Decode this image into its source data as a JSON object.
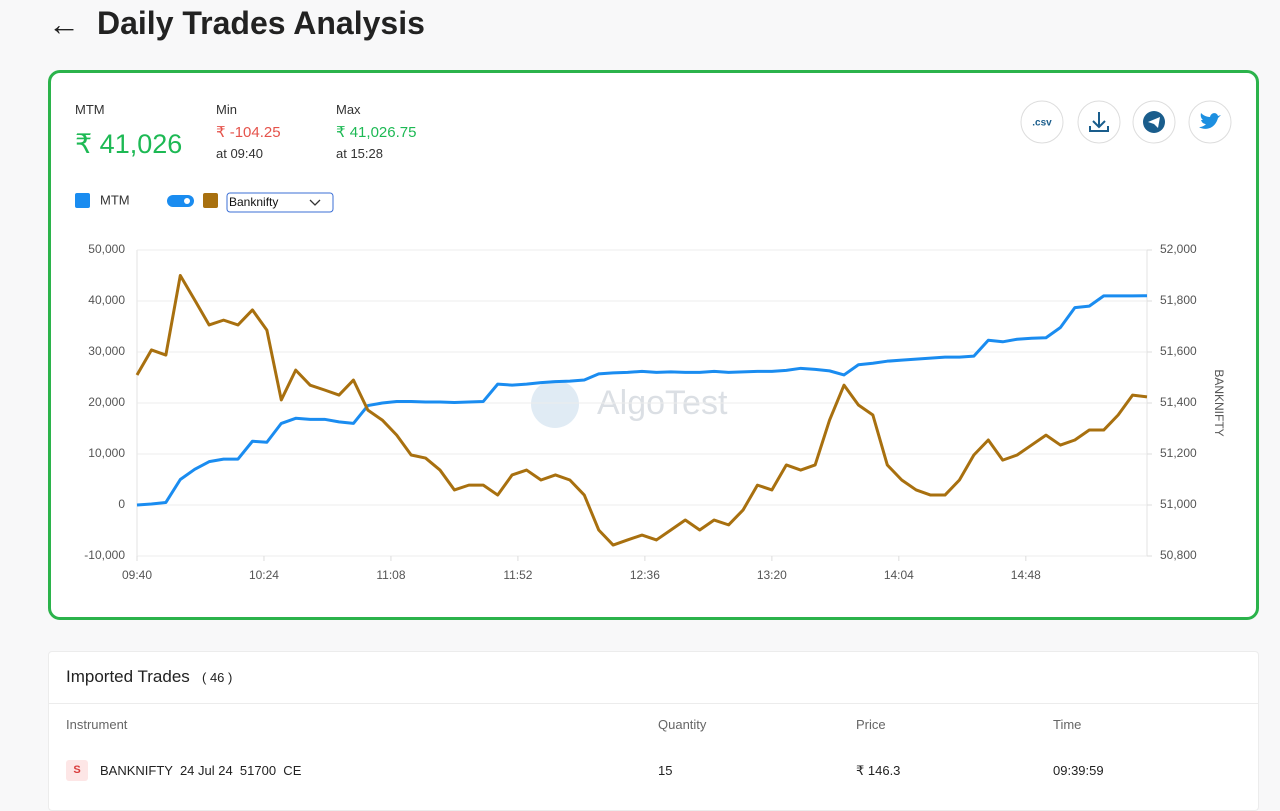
{
  "header": {
    "title": "Daily Trades Analysis"
  },
  "stats": [
    {
      "label": "MTM",
      "value": "₹ 41,026"
    },
    {
      "label": "Min",
      "value": "₹ -104.25",
      "time": "at 09:40"
    },
    {
      "label": "Max",
      "value": "₹ 41,026.75",
      "time": "at 15:28"
    }
  ],
  "actions": {
    "csv": ".csv"
  },
  "chart_data": {
    "type": "line",
    "watermark": "AlgoTest",
    "x": [
      "09:40",
      "09:45",
      "09:50",
      "09:55",
      "10:00",
      "10:05",
      "10:10",
      "10:15",
      "10:20",
      "10:25",
      "10:30",
      "10:35",
      "10:40",
      "10:45",
      "10:50",
      "10:55",
      "11:00",
      "11:05",
      "11:10",
      "11:15",
      "11:20",
      "11:25",
      "11:30",
      "11:35",
      "11:40",
      "11:45",
      "11:50",
      "11:55",
      "12:00",
      "12:05",
      "12:10",
      "12:15",
      "12:20",
      "12:25",
      "12:30",
      "12:35",
      "12:40",
      "12:45",
      "12:50",
      "12:55",
      "13:00",
      "13:05",
      "13:10",
      "13:15",
      "13:20",
      "13:25",
      "13:30",
      "13:35",
      "13:40",
      "13:45",
      "13:50",
      "13:55",
      "14:00",
      "14:05",
      "14:10",
      "14:15",
      "14:20",
      "14:25",
      "14:30",
      "14:35",
      "14:40",
      "14:45",
      "14:50",
      "14:55",
      "15:00",
      "15:05",
      "15:10",
      "15:15",
      "15:20",
      "15:25",
      "15:30"
    ],
    "xlim": [
      "09:40",
      "15:30"
    ],
    "xticks": [
      "09:40",
      "10:24",
      "11:08",
      "11:52",
      "12:36",
      "13:20",
      "14:04",
      "14:48"
    ],
    "ylim": [
      -10000,
      50000
    ],
    "yticks": [
      {
        "value": -10000,
        "label": "-10,000"
      },
      0,
      {
        "value": 10000,
        "label": "10,000"
      },
      {
        "value": 20000,
        "label": "20,000"
      },
      {
        "value": 30000,
        "label": "30,000"
      },
      {
        "value": 40000,
        "label": "40,000"
      },
      {
        "value": 50000,
        "label": "50,000"
      }
    ],
    "y2lim": [
      50800,
      52000
    ],
    "y2ticks": [
      {
        "value": 50800,
        "label": "50,800"
      },
      {
        "value": 51000,
        "label": "51,000"
      },
      {
        "value": 51200,
        "label": "51,200"
      },
      {
        "value": 51400,
        "label": "51,400"
      },
      {
        "value": 51600,
        "label": "51,600"
      },
      {
        "value": 51800,
        "label": "51,800"
      },
      {
        "value": 52000,
        "label": "52,000"
      }
    ],
    "y2label": "BANKNIFTY",
    "grid": true,
    "series": [
      {
        "name": "MTM",
        "color": "#1a8cf0",
        "values": [
          0,
          200,
          500,
          5000,
          7000,
          8500,
          9000,
          9000,
          12500,
          12300,
          16000,
          17000,
          16800,
          16800,
          16300,
          16000,
          19500,
          20000,
          20300,
          20300,
          20200,
          20200,
          20100,
          20200,
          20300,
          23700,
          23500,
          23700,
          24000,
          24200,
          24300,
          24500,
          25700,
          25900,
          26000,
          26200,
          26000,
          26100,
          26000,
          26000,
          26200,
          26000,
          26100,
          26200,
          26200,
          26400,
          26800,
          26600,
          26300,
          25500,
          27500,
          27800,
          28200,
          28400,
          28600,
          28800,
          29000,
          29000,
          29200,
          32300,
          32000,
          32500,
          32700,
          32800,
          34800,
          38700,
          39000,
          41000,
          41000,
          41000,
          41027
        ]
      },
      {
        "name": "Banknifty",
        "color": "#a8700f",
        "axis": "y2",
        "values": [
          51510,
          51608,
          51588,
          51900,
          51804,
          51706,
          51725,
          51706,
          51765,
          51686,
          51412,
          51529,
          51470,
          51451,
          51431,
          51490,
          51372,
          51333,
          51274,
          51196,
          51184,
          51137,
          51059,
          51078,
          51078,
          51039,
          51118,
          51137,
          51098,
          51118,
          51098,
          51039,
          50902,
          50843,
          50863,
          50882,
          50863,
          50902,
          50941,
          50902,
          50941,
          50922,
          50980,
          51078,
          51059,
          51157,
          51137,
          51157,
          51333,
          51470,
          51392,
          51353,
          51157,
          51098,
          51059,
          51039,
          51039,
          51098,
          51196,
          51255,
          51176,
          51196,
          51235,
          51274,
          51235,
          51255,
          51294,
          51294,
          51353,
          51431,
          51424
        ]
      }
    ]
  },
  "trades": {
    "title": "Imported Trades",
    "count": "( 46 )",
    "columns": [
      "Instrument",
      "Quantity",
      "Price",
      "Time"
    ],
    "rows": [
      [
        "S",
        "BANKNIFTY  24 Jul 24  51700  CE",
        "15",
        "₹ 146.3",
        "09:39:59"
      ]
    ]
  }
}
